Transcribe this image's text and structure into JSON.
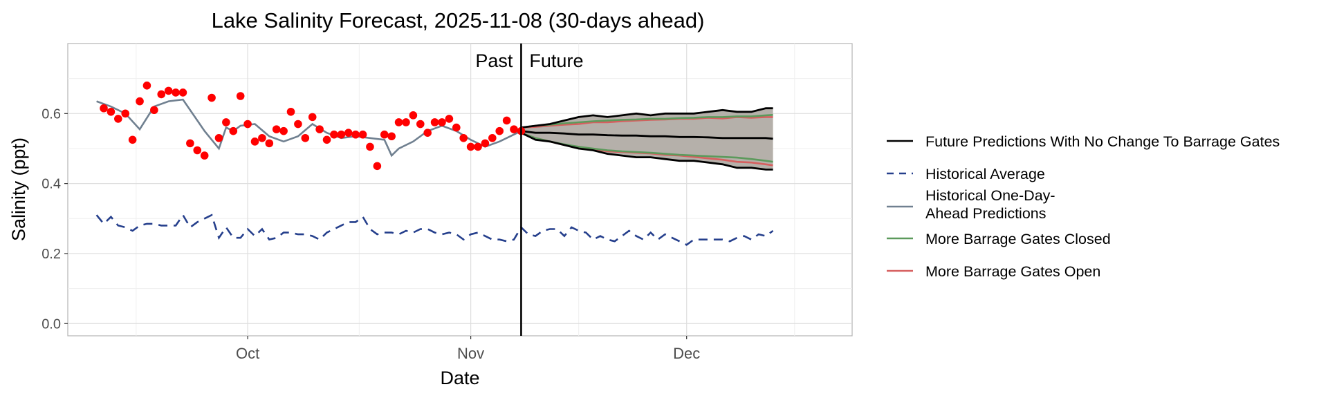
{
  "chart_data": {
    "type": "line",
    "title": "Lake Salinity Forecast, 2025-11-08 (30-days ahead)",
    "xlabel": "Date",
    "ylabel": "Salinity (ppt)",
    "x_tick_labels": [
      "Oct",
      "Nov",
      "Dec"
    ],
    "x_ticks": [
      "2025-10-01",
      "2025-11-01",
      "2025-12-01"
    ],
    "xlim": [
      "2025-09-06",
      "2025-12-24"
    ],
    "y_ticks": [
      0.0,
      0.2,
      0.4,
      0.6
    ],
    "y_tick_labels": [
      "0.0",
      "0.2",
      "0.4",
      "0.6"
    ],
    "ylim": [
      -0.035,
      0.8
    ],
    "grid": true,
    "legend_position": "right",
    "divider": {
      "date": "2025-11-08",
      "left_label": "Past",
      "right_label": "Future"
    },
    "colors": {
      "observed": "#ff0000",
      "future": "#000000",
      "historical_average": "#253f8c",
      "one_day_ahead": "#708090",
      "gates_closed": "#5c9a5c",
      "gates_open": "#d65f5f",
      "band": "#b5b0aa"
    },
    "observed": {
      "x": [
        "2025-09-11",
        "2025-09-12",
        "2025-09-13",
        "2025-09-14",
        "2025-09-15",
        "2025-09-16",
        "2025-09-17",
        "2025-09-18",
        "2025-09-19",
        "2025-09-20",
        "2025-09-21",
        "2025-09-22",
        "2025-09-23",
        "2025-09-24",
        "2025-09-25",
        "2025-09-26",
        "2025-09-27",
        "2025-09-28",
        "2025-09-29",
        "2025-09-30",
        "2025-10-01",
        "2025-10-02",
        "2025-10-03",
        "2025-10-04",
        "2025-10-05",
        "2025-10-06",
        "2025-10-07",
        "2025-10-08",
        "2025-10-09",
        "2025-10-10",
        "2025-10-11",
        "2025-10-12",
        "2025-10-13",
        "2025-10-14",
        "2025-10-15",
        "2025-10-16",
        "2025-10-17",
        "2025-10-18",
        "2025-10-19",
        "2025-10-20",
        "2025-10-21",
        "2025-10-22",
        "2025-10-23",
        "2025-10-24",
        "2025-10-25",
        "2025-10-26",
        "2025-10-27",
        "2025-10-28",
        "2025-10-29",
        "2025-10-30",
        "2025-10-31",
        "2025-11-01",
        "2025-11-02",
        "2025-11-03",
        "2025-11-04",
        "2025-11-05",
        "2025-11-06",
        "2025-11-07",
        "2025-11-08"
      ],
      "y": [
        0.615,
        0.605,
        0.585,
        0.6,
        0.525,
        0.635,
        0.68,
        0.61,
        0.655,
        0.665,
        0.66,
        0.66,
        0.515,
        0.495,
        0.48,
        0.645,
        0.53,
        0.575,
        0.55,
        0.65,
        0.57,
        0.52,
        0.53,
        0.515,
        0.555,
        0.55,
        0.605,
        0.57,
        0.53,
        0.59,
        0.555,
        0.525,
        0.54,
        0.54,
        0.545,
        0.54,
        0.54,
        0.505,
        0.45,
        0.54,
        0.535,
        0.575,
        0.575,
        0.595,
        0.57,
        0.545,
        0.575,
        0.575,
        0.585,
        0.56,
        0.53,
        0.505,
        0.505,
        0.515,
        0.53,
        0.55,
        0.58,
        0.555,
        0.55
      ]
    },
    "one_day_ahead": {
      "x": [
        "2025-09-10",
        "2025-09-12",
        "2025-09-14",
        "2025-09-16",
        "2025-09-18",
        "2025-09-20",
        "2025-09-22",
        "2025-09-24",
        "2025-09-25",
        "2025-09-26",
        "2025-09-27",
        "2025-09-28",
        "2025-09-29",
        "2025-09-30",
        "2025-10-02",
        "2025-10-04",
        "2025-10-06",
        "2025-10-08",
        "2025-10-10",
        "2025-10-12",
        "2025-10-14",
        "2025-10-16",
        "2025-10-18",
        "2025-10-20",
        "2025-10-21",
        "2025-10-22",
        "2025-10-24",
        "2025-10-26",
        "2025-10-28",
        "2025-10-30",
        "2025-11-01",
        "2025-11-03",
        "2025-11-05",
        "2025-11-07",
        "2025-11-08"
      ],
      "y": [
        0.635,
        0.62,
        0.6,
        0.555,
        0.62,
        0.635,
        0.64,
        0.58,
        0.55,
        0.525,
        0.5,
        0.56,
        0.55,
        0.565,
        0.57,
        0.535,
        0.52,
        0.535,
        0.57,
        0.545,
        0.53,
        0.535,
        0.53,
        0.525,
        0.48,
        0.5,
        0.52,
        0.55,
        0.565,
        0.55,
        0.525,
        0.505,
        0.52,
        0.54,
        0.55
      ]
    },
    "historical_average": {
      "x": [
        "2025-09-10",
        "2025-09-11",
        "2025-09-12",
        "2025-09-13",
        "2025-09-14",
        "2025-09-15",
        "2025-09-16",
        "2025-09-17",
        "2025-09-18",
        "2025-09-19",
        "2025-09-20",
        "2025-09-21",
        "2025-09-22",
        "2025-09-23",
        "2025-09-24",
        "2025-09-25",
        "2025-09-26",
        "2025-09-27",
        "2025-09-28",
        "2025-09-29",
        "2025-09-30",
        "2025-10-01",
        "2025-10-02",
        "2025-10-03",
        "2025-10-04",
        "2025-10-05",
        "2025-10-06",
        "2025-10-07",
        "2025-10-08",
        "2025-10-09",
        "2025-10-10",
        "2025-10-11",
        "2025-10-12",
        "2025-10-13",
        "2025-10-14",
        "2025-10-15",
        "2025-10-16",
        "2025-10-17",
        "2025-10-18",
        "2025-10-19",
        "2025-10-20",
        "2025-10-21",
        "2025-10-22",
        "2025-10-23",
        "2025-10-24",
        "2025-10-25",
        "2025-10-26",
        "2025-10-27",
        "2025-10-28",
        "2025-10-29",
        "2025-10-30",
        "2025-10-31",
        "2025-11-01",
        "2025-11-02",
        "2025-11-03",
        "2025-11-04",
        "2025-11-05",
        "2025-11-06",
        "2025-11-07",
        "2025-11-08",
        "2025-11-09",
        "2025-11-10",
        "2025-11-11",
        "2025-11-12",
        "2025-11-13",
        "2025-11-14",
        "2025-11-15",
        "2025-11-16",
        "2025-11-17",
        "2025-11-18",
        "2025-11-19",
        "2025-11-20",
        "2025-11-21",
        "2025-11-22",
        "2025-11-23",
        "2025-11-24",
        "2025-11-25",
        "2025-11-26",
        "2025-11-27",
        "2025-11-28",
        "2025-11-29",
        "2025-11-30",
        "2025-12-01",
        "2025-12-02",
        "2025-12-03",
        "2025-12-04",
        "2025-12-05",
        "2025-12-06",
        "2025-12-07",
        "2025-12-08",
        "2025-12-09",
        "2025-12-10",
        "2025-12-11",
        "2025-12-12",
        "2025-12-13"
      ],
      "y": [
        0.31,
        0.285,
        0.305,
        0.28,
        0.275,
        0.265,
        0.28,
        0.285,
        0.285,
        0.28,
        0.28,
        0.28,
        0.31,
        0.275,
        0.29,
        0.3,
        0.31,
        0.245,
        0.275,
        0.245,
        0.245,
        0.27,
        0.25,
        0.27,
        0.24,
        0.245,
        0.26,
        0.26,
        0.255,
        0.255,
        0.25,
        0.24,
        0.26,
        0.27,
        0.28,
        0.29,
        0.29,
        0.305,
        0.27,
        0.255,
        0.26,
        0.26,
        0.255,
        0.265,
        0.26,
        0.27,
        0.27,
        0.26,
        0.255,
        0.26,
        0.255,
        0.24,
        0.255,
        0.26,
        0.25,
        0.24,
        0.24,
        0.235,
        0.24,
        0.275,
        0.255,
        0.25,
        0.265,
        0.27,
        0.27,
        0.25,
        0.275,
        0.265,
        0.26,
        0.24,
        0.25,
        0.24,
        0.235,
        0.25,
        0.265,
        0.25,
        0.24,
        0.26,
        0.24,
        0.255,
        0.245,
        0.235,
        0.225,
        0.24,
        0.24,
        0.24,
        0.24,
        0.24,
        0.235,
        0.245,
        0.25,
        0.24,
        0.255,
        0.25,
        0.265
      ]
    },
    "future": {
      "x": [
        "2025-11-08",
        "2025-11-10",
        "2025-11-12",
        "2025-11-14",
        "2025-11-16",
        "2025-11-18",
        "2025-11-20",
        "2025-11-22",
        "2025-11-24",
        "2025-11-26",
        "2025-11-28",
        "2025-11-30",
        "2025-12-02",
        "2025-12-04",
        "2025-12-06",
        "2025-12-08",
        "2025-12-10",
        "2025-12-12",
        "2025-12-13"
      ],
      "median": [
        0.55,
        0.545,
        0.545,
        0.543,
        0.54,
        0.54,
        0.538,
        0.537,
        0.537,
        0.535,
        0.535,
        0.533,
        0.533,
        0.532,
        0.53,
        0.53,
        0.53,
        0.53,
        0.528
      ],
      "upper": [
        0.56,
        0.565,
        0.57,
        0.58,
        0.59,
        0.595,
        0.59,
        0.595,
        0.6,
        0.595,
        0.6,
        0.6,
        0.6,
        0.605,
        0.61,
        0.605,
        0.605,
        0.615,
        0.615
      ],
      "lower": [
        0.545,
        0.525,
        0.52,
        0.51,
        0.5,
        0.495,
        0.485,
        0.48,
        0.475,
        0.475,
        0.47,
        0.465,
        0.465,
        0.46,
        0.455,
        0.445,
        0.445,
        0.44,
        0.44
      ]
    },
    "gates_closed": {
      "x": [
        "2025-11-08",
        "2025-11-10",
        "2025-11-12",
        "2025-11-14",
        "2025-11-16",
        "2025-11-18",
        "2025-11-20",
        "2025-11-22",
        "2025-11-24",
        "2025-11-26",
        "2025-11-28",
        "2025-11-30",
        "2025-12-02",
        "2025-12-04",
        "2025-12-06",
        "2025-12-08",
        "2025-12-10",
        "2025-12-12",
        "2025-12-13"
      ],
      "upper": [
        0.56,
        0.565,
        0.568,
        0.572,
        0.575,
        0.578,
        0.58,
        0.582,
        0.583,
        0.585,
        0.585,
        0.587,
        0.588,
        0.59,
        0.59,
        0.592,
        0.592,
        0.595,
        0.596
      ],
      "lower": [
        0.545,
        0.53,
        0.52,
        0.512,
        0.505,
        0.5,
        0.495,
        0.492,
        0.49,
        0.488,
        0.485,
        0.482,
        0.48,
        0.478,
        0.476,
        0.474,
        0.47,
        0.465,
        0.462
      ]
    },
    "gates_open": {
      "x": [
        "2025-11-08",
        "2025-11-10",
        "2025-11-12",
        "2025-11-14",
        "2025-11-16",
        "2025-11-18",
        "2025-11-20",
        "2025-11-22",
        "2025-11-24",
        "2025-11-26",
        "2025-11-28",
        "2025-11-30",
        "2025-12-02",
        "2025-12-04",
        "2025-12-06",
        "2025-12-08",
        "2025-12-10",
        "2025-12-12",
        "2025-12-13"
      ],
      "upper": [
        0.56,
        0.562,
        0.565,
        0.568,
        0.57,
        0.575,
        0.575,
        0.578,
        0.58,
        0.582,
        0.583,
        0.585,
        0.585,
        0.588,
        0.586,
        0.59,
        0.588,
        0.59,
        0.59
      ],
      "lower": [
        0.545,
        0.53,
        0.52,
        0.51,
        0.505,
        0.498,
        0.492,
        0.49,
        0.488,
        0.486,
        0.482,
        0.48,
        0.476,
        0.472,
        0.468,
        0.462,
        0.46,
        0.455,
        0.452
      ]
    },
    "legend": [
      {
        "key": "future",
        "lines": [
          "Future Predictions With No Change To Barrage Gates"
        ],
        "style": "solid",
        "color": "#000000"
      },
      {
        "key": "historical_average",
        "lines": [
          "Historical Average"
        ],
        "style": "dashed",
        "color": "#253f8c"
      },
      {
        "key": "one_day_ahead",
        "lines": [
          "Historical One-Day-",
          "Ahead Predictions"
        ],
        "style": "solid",
        "color": "#708090"
      },
      {
        "key": "gates_closed",
        "lines": [
          "More Barrage Gates Closed"
        ],
        "style": "solid",
        "color": "#5c9a5c"
      },
      {
        "key": "gates_open",
        "lines": [
          "More Barrage Gates Open"
        ],
        "style": "solid",
        "color": "#d65f5f"
      }
    ]
  }
}
